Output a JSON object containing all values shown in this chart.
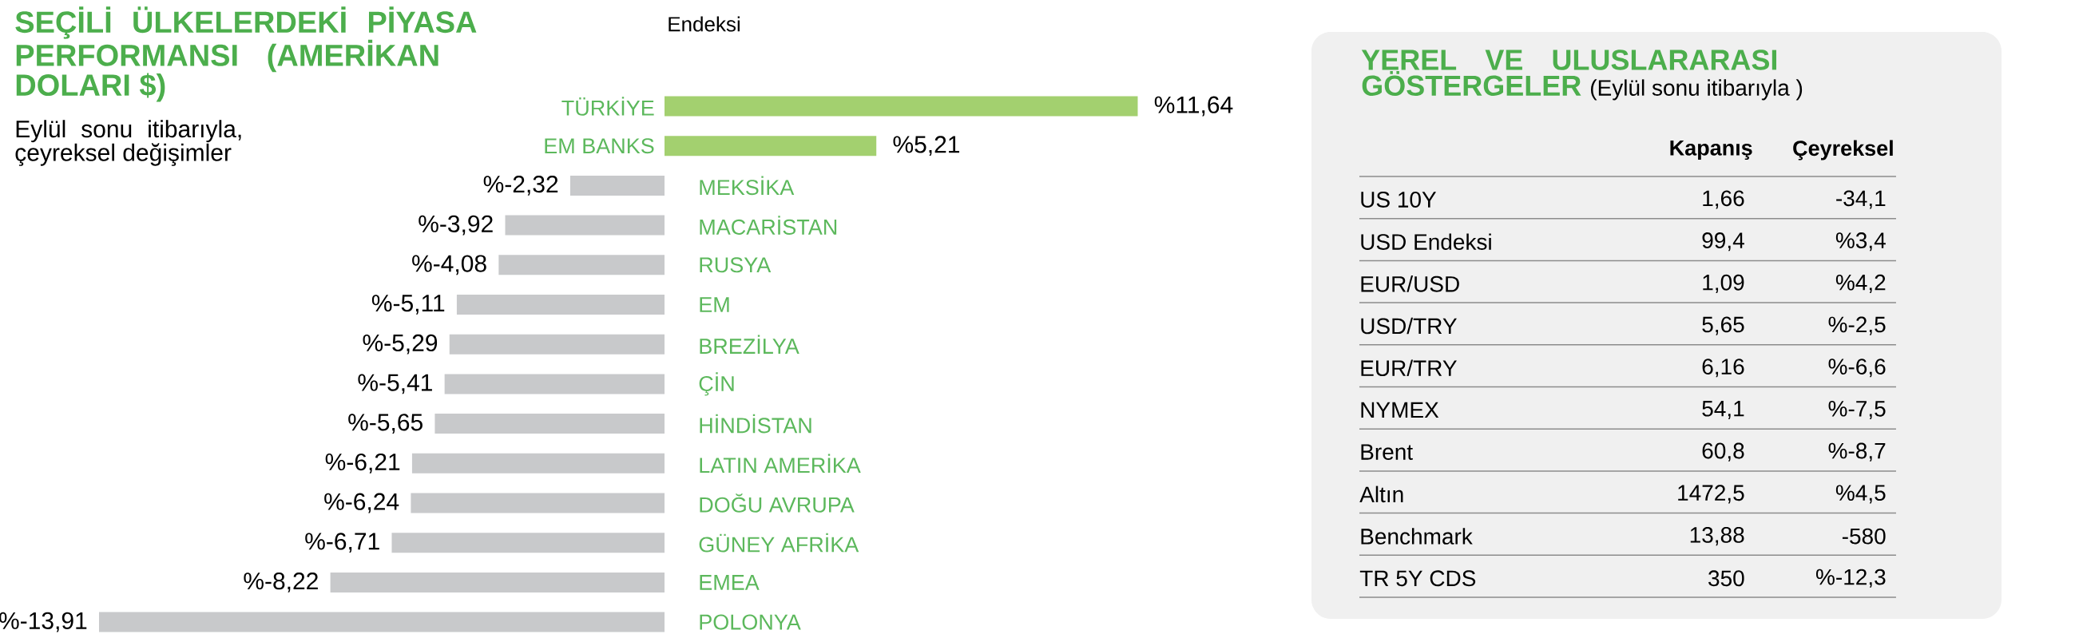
{
  "chart_data": [
    {
      "type": "bar",
      "orientation": "horizontal",
      "title": "SEÇİLİ ÜLKELERDEKİ PİYASA PERFORMANSI (AMERİKAN DOLARI $)",
      "subtitle": "Eylül sonu itibarıyla, çeyreksel değişimler",
      "annotations": [
        "Endeksi"
      ],
      "categories": [
        "TÜRKİYE",
        "EM BANKS",
        "MEKSİKA",
        "MACARİSTAN",
        "RUSYA",
        "EM",
        "BREZİLYA",
        "ÇİN",
        "HİNDİSTAN",
        "LATIN AMERİKA",
        "DOĞU AVRUPA",
        "GÜNEY AFRİKA",
        "EMEA",
        "POLONYA"
      ],
      "values": [
        11.64,
        5.21,
        -2.32,
        -3.92,
        -4.08,
        -5.11,
        -5.29,
        -5.41,
        -5.65,
        -6.21,
        -6.24,
        -6.71,
        -8.22,
        -13.91
      ],
      "colors": [
        "#a3d06f",
        "#a3d06f",
        "#c8c9cb",
        "#c8c9cb",
        "#c8c9cb",
        "#c8c9cb",
        "#c8c9cb",
        "#c8c9cb",
        "#c8c9cb",
        "#c8c9cb",
        "#c8c9cb",
        "#c8c9cb",
        "#c8c9cb",
        "#c8c9cb"
      ],
      "value_labels": [
        "%11,64",
        "%5,21",
        "%-2,32",
        "%-3,92",
        "%-4,08",
        "%-5,11",
        "%-5,29",
        "%-5,41",
        "%-5,65",
        "%-6,21",
        "%-6,24",
        "%-6,71",
        "%-8,22",
        "%-13,91"
      ]
    },
    {
      "type": "other",
      "title": "YEREL VE ULUSLARARASI GÖSTERGELER",
      "subtitle": "(Eylül sonu itibarıyla )",
      "annotations": [
        "Kapanış",
        "Çeyreksel",
        "US 10Y",
        "1,66",
        "-34,1",
        "USD Endeksi",
        "99,4",
        "%3,4",
        "EUR/USD",
        "1,09",
        "%4,2",
        "USD/TRY",
        "5,65",
        "%-2,5",
        "EUR/TRY",
        "6,16",
        "%-6,6",
        "NYMEX",
        "54,1",
        "%-7,5",
        "Brent",
        "60,8",
        "%-8,7",
        "Altın",
        "1472,5",
        "%4,5",
        "Benchmark",
        "13,88",
        "-580",
        "TR 5Y CDS",
        "350",
        "%-12,3"
      ]
    }
  ]
}
